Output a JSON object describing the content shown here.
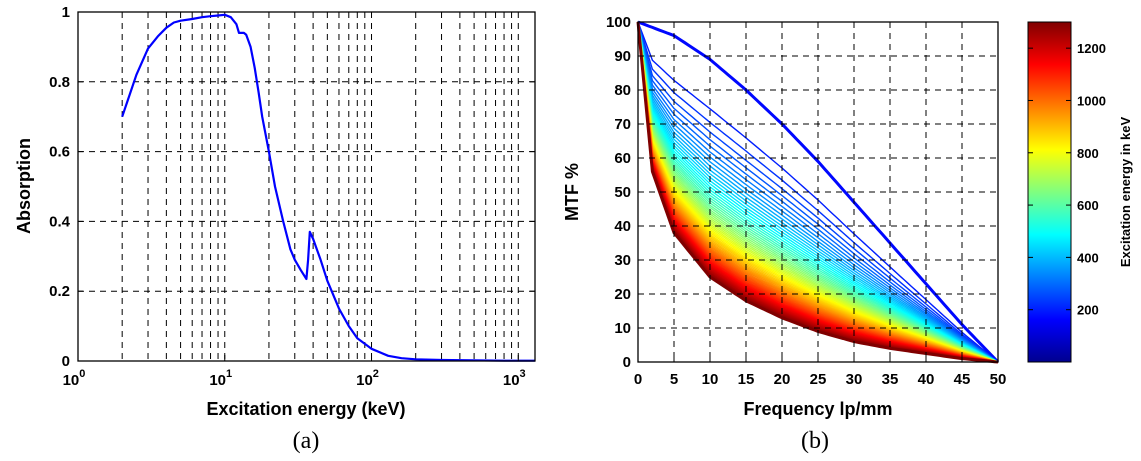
{
  "chart_data": [
    {
      "type": "line",
      "caption": "(a)",
      "xlabel": "Excitation energy (keV)",
      "ylabel": "Absorption",
      "xscale": "log",
      "xlim": [
        1,
        1300
      ],
      "ylim": [
        0,
        1
      ],
      "xticks": [
        {
          "base": "10",
          "exp": "0"
        },
        {
          "base": "10",
          "exp": "1"
        },
        {
          "base": "10",
          "exp": "2"
        },
        {
          "base": "10",
          "exp": "3"
        }
      ],
      "yticks": [
        "0",
        "0.2",
        "0.4",
        "0.6",
        "0.8",
        "1"
      ],
      "grid": true,
      "color": "#0000ff",
      "series": [
        {
          "x": [
            2,
            2.5,
            3,
            3.5,
            4,
            4.5,
            5,
            6,
            7,
            8,
            9,
            10,
            11,
            12,
            12.5,
            13.5,
            14,
            15,
            16,
            17,
            18,
            20,
            22,
            25,
            28,
            30,
            33,
            36,
            37,
            38,
            40,
            45,
            50,
            60,
            70,
            80,
            100,
            130,
            160,
            200,
            300,
            500,
            800,
            1000,
            1300
          ],
          "y": [
            0.7,
            0.82,
            0.895,
            0.93,
            0.955,
            0.97,
            0.975,
            0.98,
            0.985,
            0.988,
            0.99,
            0.992,
            0.985,
            0.965,
            0.94,
            0.94,
            0.935,
            0.9,
            0.84,
            0.77,
            0.7,
            0.6,
            0.5,
            0.4,
            0.32,
            0.29,
            0.26,
            0.235,
            0.29,
            0.37,
            0.35,
            0.29,
            0.23,
            0.15,
            0.1,
            0.065,
            0.035,
            0.015,
            0.008,
            0.005,
            0.003,
            0.002,
            0.001,
            0.001,
            0.001
          ]
        }
      ]
    },
    {
      "type": "line",
      "caption": "(b)",
      "xlabel": "Frequency lp/mm",
      "ylabel": "MTF %",
      "xlim": [
        0,
        50
      ],
      "ylim": [
        0,
        100
      ],
      "xticks": [
        "0",
        "5",
        "10",
        "15",
        "20",
        "25",
        "30",
        "35",
        "40",
        "45",
        "50"
      ],
      "yticks": [
        "0",
        "10",
        "20",
        "30",
        "40",
        "50",
        "60",
        "70",
        "80",
        "90",
        "100"
      ],
      "grid": true,
      "note": "dense family of MTF curves, one per excitation energy from low (dark blue, outermost) to high (dark red, innermost)",
      "series": [
        {
          "energy_keV": 20,
          "x": [
            0,
            5,
            10,
            15,
            20,
            25,
            30,
            35,
            40,
            45,
            50
          ],
          "y": [
            100,
            96,
            89,
            80,
            70,
            59,
            47,
            35,
            23,
            11,
            0
          ]
        },
        {
          "energy_keV": 1300,
          "x": [
            0,
            2,
            5,
            10,
            15,
            20,
            25,
            30,
            35,
            40,
            45,
            50
          ],
          "y": [
            100,
            56,
            38,
            25,
            18,
            13,
            9,
            6,
            4,
            2.5,
            1,
            0
          ]
        }
      ],
      "colorbar": {
        "label": "Excitation energy in keV",
        "range": [
          0,
          1300
        ],
        "ticks": [
          "200",
          "400",
          "600",
          "800",
          "1000",
          "1200"
        ],
        "tick_values": [
          200,
          400,
          600,
          800,
          1000,
          1200
        ],
        "colormap": "jet"
      }
    }
  ]
}
